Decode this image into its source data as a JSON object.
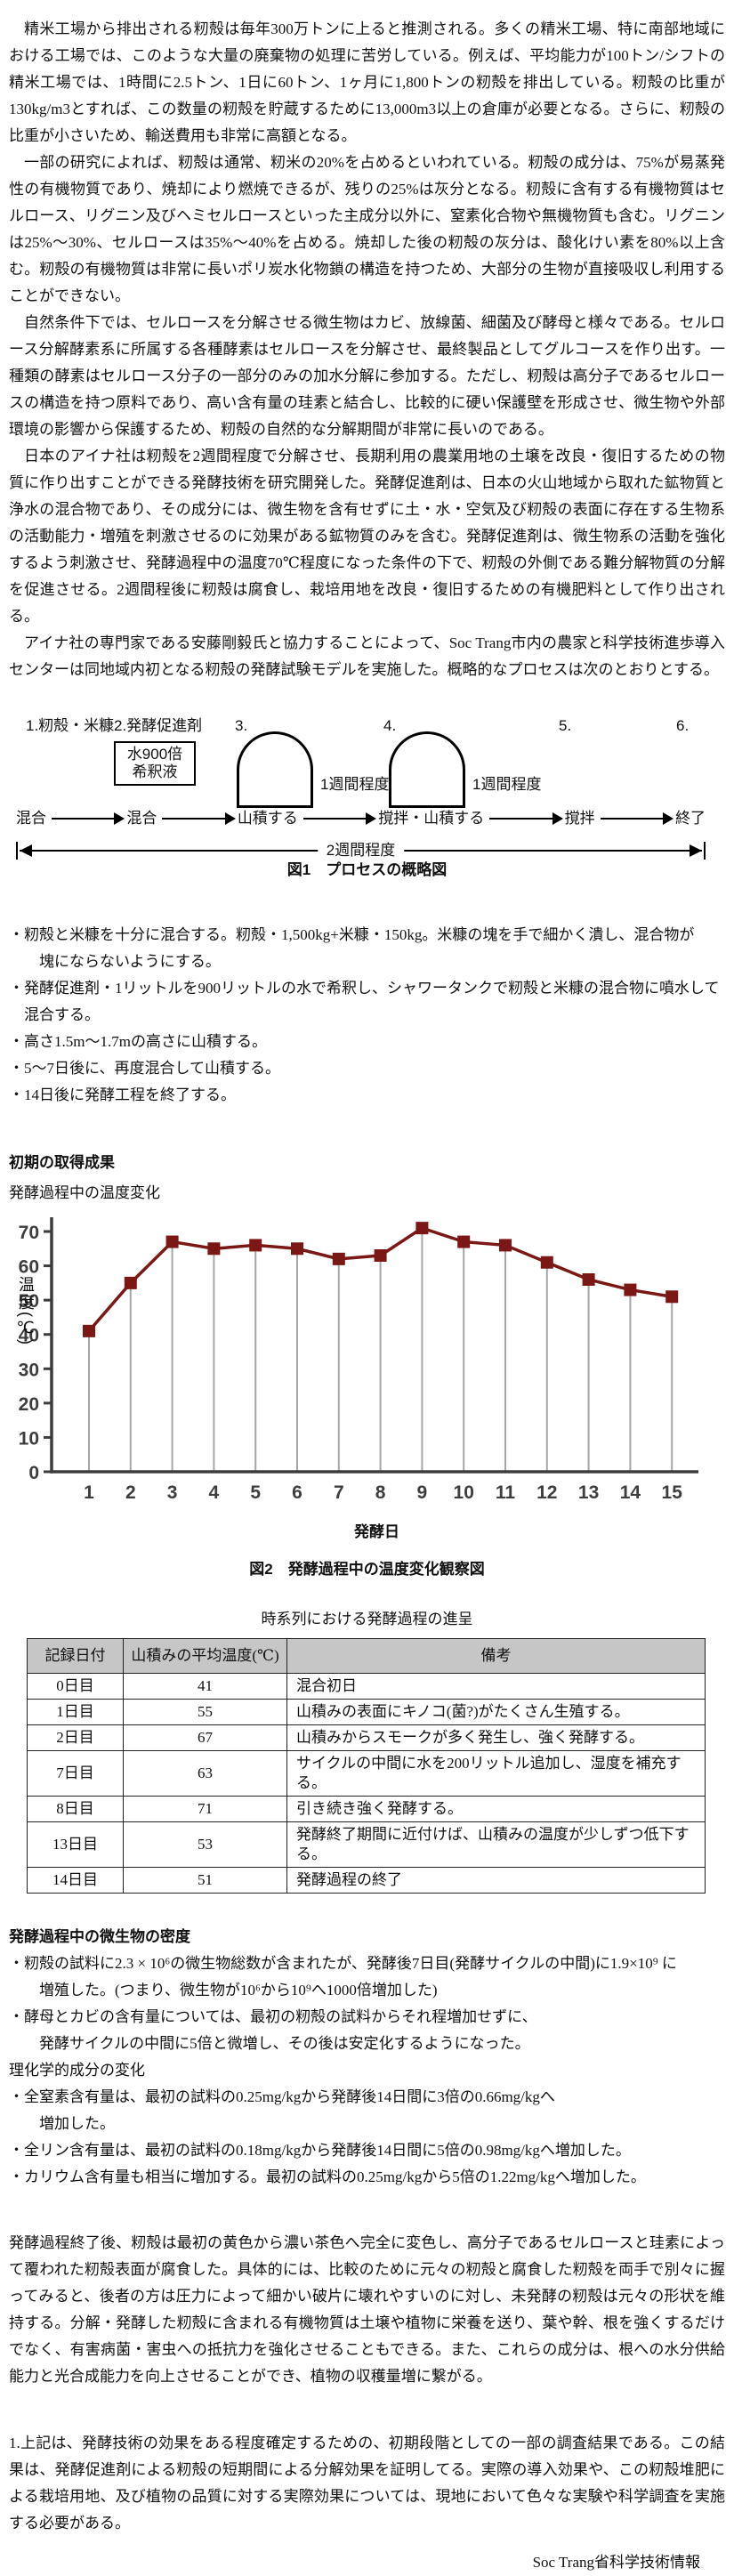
{
  "page": {
    "paragraphs": [
      "精米工場から排出される籾殻は毎年300万トンに上ると推測される。多くの精米工場、特に南部地域における工場では、このような大量の廃棄物の処理に苦労している。例えば、平均能力が100トン/シフトの精米工場では、1時間に2.5トン、1日に60トン、1ヶ月に1,800トンの籾殻を排出している。籾殻の比重が130kg/m3とすれば、この数量の籾殻を貯蔵するために13,000m3以上の倉庫が必要となる。さらに、籾殻の比重が小さいため、輸送費用も非常に高額となる。",
      "一部の研究によれば、籾殻は通常、籾米の20%を占めるといわれている。籾殻の成分は、75%が易蒸発性の有機物質であり、焼却により燃焼できるが、残りの25%は灰分となる。籾殻に含有する有機物質はセルロース、リグニン及びヘミセルロースといった主成分以外に、窒素化合物や無機物質も含む。リグニンは25%〜30%、セルロースは35%〜40%を占める。焼却した後の籾殻の灰分は、酸化けい素を80%以上含む。籾殻の有機物質は非常に長いポリ炭水化物鎖の構造を持つため、大部分の生物が直接吸収し利用することができない。",
      "自然条件下では、セルロースを分解させる微生物はカビ、放線菌、細菌及び酵母と様々である。セルロース分解酵素系に所属する各種酵素はセルロースを分解させ、最終製品としてグルコースを作り出す。一種類の酵素はセルロース分子の一部分のみの加水分解に参加する。ただし、籾殻は高分子であるセルロースの構造を持つ原料であり、高い含有量の珪素と結合し、比較的に硬い保護壁を形成させ、微生物や外部環境の影響から保護するため、籾殻の自然的な分解期間が非常に長いのである。",
      "日本のアイナ社は籾殻を2週間程度で分解させ、長期利用の農業用地の土壌を改良・復旧するための物質に作り出すことができる発酵技術を研究開発した。発酵促進剤は、日本の火山地域から取れた鉱物質と浄水の混合物であり、その成分には、微生物を含有せずに土・水・空気及び籾殻の表面に存在する生物系の活動能力・増殖を刺激させるのに効果がある鉱物質のみを含む。発酵促進剤は、微生物系の活動を強化するよう刺激させ、発酵過程中の温度70℃程度になった条件の下で、籾殻の外側である難分解物質の分解を促進させる。2週間程後に籾殻は腐食し、栽培用地を改良・復旧するための有機肥料として作り出される。",
      "アイナ社の専門家である安藤剛毅氏と協力することによって、Soc Trang市内の農家と科学技術進歩導入センターは同地域内初となる籾殻の発酵試験モデルを実施した。概略的なプロセスは次のとおりとする。"
    ],
    "figure1": {
      "step_labels": [
        "1.籾殻・米糠",
        "2.発酵促進剤",
        "3.",
        "4.",
        "5.",
        "6."
      ],
      "dilution_box_line1": "水900倍",
      "dilution_box_line2": "希釈液",
      "week_label_1": "1週間程度",
      "week_label_2": "1週間程度",
      "flow_steps": [
        "混合",
        "混合",
        "山積する",
        "撹拌・山積する",
        "撹拌",
        "終了"
      ],
      "duration_label": "2週間程度",
      "caption": "図1　プロセスの概略図"
    },
    "process_steps": [
      "・籾殻と米糠を十分に混合する。籾殻・1,500kg+米糠・150kg。米糠の塊を手で細かく潰し、混合物が\n　塊にならないようにする。",
      "・発酵促進剤・1リットルを900リットルの水で希釈し、シャワータンクで籾殻と米糠の混合物に噴水して混合する。",
      "・高さ1.5m〜1.7mの高さに山積する。",
      "・5〜7日後に、再度混合して山積する。",
      "・14日後に発酵工程を終了する。"
    ],
    "results_heading": "初期の取得成果",
    "figure2_caption": "図2　発酵過程中の温度変化観察図",
    "table": {
      "title": "時系列における発酵過程の進呈",
      "headers": [
        "記録日付",
        "山積みの平均温度(℃)",
        "備考"
      ],
      "rows": [
        [
          "0日目",
          "41",
          "混合初日"
        ],
        [
          "1日目",
          "55",
          "山積みの表面にキノコ(菌?)がたくさん生殖する。"
        ],
        [
          "2日目",
          "67",
          "山積みからスモークが多く発生し、強く発酵する。"
        ],
        [
          "7日目",
          "63",
          "サイクルの中間に水を200リットル追加し、湿度を補充する。"
        ],
        [
          "8日目",
          "71",
          "引き続き強く発酵する。"
        ],
        [
          "13日目",
          "53",
          "発酵終了期間に近付けば、山積みの温度が少しずつ低下する。"
        ],
        [
          "14日目",
          "51",
          "発酵過程の終了"
        ]
      ]
    },
    "microbe_heading": "発酵過程中の微生物の密度",
    "microbe_bullets": [
      "・籾殻の試料に2.3 × 10⁶の微生物総数が含まれたが、発酵後7日目(発酵サイクルの中間)に1.9×10⁹ に\n　増殖した。(つまり、微生物が10⁶から10⁹へ1000倍増加した)",
      "・酵母とカビの含有量については、最初の籾殻の試料からそれ程増加せずに、\n　発酵サイクルの中間に5倍と微増し、その後は安定化するようになった。"
    ],
    "chem_heading": "理化学的成分の変化",
    "chem_bullets": [
      "・全窒素含有量は、最初の試料の0.25mg/kgから発酵後14日間に3倍の0.66mg/kgへ\n　増加した。",
      "・全リン含有量は、最初の試料の0.18mg/kgから発酵後14日間に5倍の0.98mg/kgへ増加した。",
      "・カリウム含有量も相当に増加する。最初の試料の0.25mg/kgから5倍の1.22mg/kgへ増加した。"
    ],
    "closing_paragraphs": [
      "発酵過程終了後、籾殻は最初の黄色から濃い茶色へ完全に変色し、高分子であるセルロースと珪素によって覆われた籾殻表面が腐食した。具体的には、比較のために元々の籾殻と腐食した籾殻を両手で別々に握ってみると、後者の方は圧力によって細かい破片に壊れやすいのに対し、未発酵の籾殻は元々の形状を維持する。分解・発酵した籾殻に含まれる有機物質は土壌や植物に栄養を送り、葉や幹、根を強くするだけでなく、有害病菌・害虫への抵抗力を強化させることもできる。また、これらの成分は、根への水分供給能力と光合成能力を向上させることができ、植物の収穫量増に繋がる。",
      "1.上記は、発酵技術の効果をある程度確定するための、初期段階としての一部の調査結果である。この結果は、発酵促進剤による籾殻の短期間による分解効果を証明してる。実際の導入効果や、この籾殻堆肥による栽培用地、及び植物の品質に対する実際効果については、現地において色々な実験や科学調査を実施する必要がある。"
    ],
    "signature": "Soc Trang省科学技術情報"
  },
  "chart_data": {
    "type": "line",
    "title": "発酵過程中の温度変化",
    "xlabel": "発酵日",
    "ylabel": "温度(℃)",
    "x": [
      1,
      2,
      3,
      4,
      5,
      6,
      7,
      8,
      9,
      10,
      11,
      12,
      13,
      14,
      15
    ],
    "values": [
      41,
      55,
      67,
      65,
      66,
      65,
      62,
      63,
      71,
      67,
      66,
      61,
      56,
      53,
      51
    ],
    "ylim": [
      0,
      75
    ],
    "yticks": [
      0,
      10,
      20,
      30,
      40,
      50,
      60,
      70
    ],
    "grid": false,
    "legend": null,
    "marker": "square",
    "line_color": "#7b1714",
    "stem_color": "#a6a6a6",
    "axis_color": "#3d3d3d"
  }
}
